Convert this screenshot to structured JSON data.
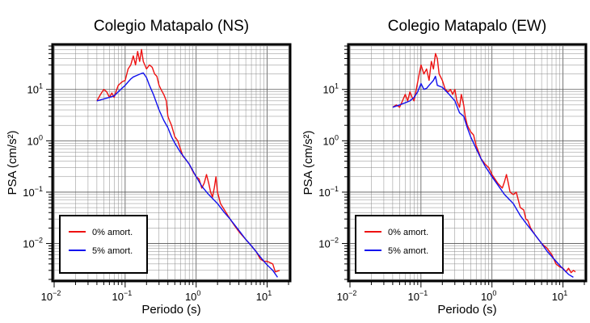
{
  "chart_data": [
    {
      "type": "line",
      "title": "Colegio Matapalo (NS)",
      "xlabel": "Periodo (s)",
      "ylabel": "PSA (cm/s²)",
      "xscale": "log",
      "yscale": "log",
      "xlim": [
        0.01,
        20
      ],
      "ylim": [
        0.002,
        70
      ],
      "grid": true,
      "legend_position": "bottom-left",
      "x_ticks": [
        {
          "value": 0.01,
          "base": "10",
          "exp": "−2"
        },
        {
          "value": 0.1,
          "base": "10",
          "exp": "−1"
        },
        {
          "value": 1,
          "base": "10",
          "exp": "0"
        },
        {
          "value": 10,
          "base": "10",
          "exp": "1"
        }
      ],
      "y_ticks": [
        {
          "value": 0.01,
          "base": "10",
          "exp": "−2"
        },
        {
          "value": 0.1,
          "base": "10",
          "exp": "−1"
        },
        {
          "value": 1,
          "base": "10",
          "exp": "0"
        },
        {
          "value": 10,
          "base": "10",
          "exp": "1"
        }
      ],
      "series": [
        {
          "name": "0% amort.",
          "color": "#ee1111",
          "points": [
            [
              0.04,
              6.0
            ],
            [
              0.045,
              8.0
            ],
            [
              0.05,
              10.0
            ],
            [
              0.055,
              9.0
            ],
            [
              0.06,
              7.0
            ],
            [
              0.065,
              8.5
            ],
            [
              0.07,
              7.0
            ],
            [
              0.075,
              9.5
            ],
            [
              0.08,
              12.0
            ],
            [
              0.09,
              14.0
            ],
            [
              0.1,
              15.0
            ],
            [
              0.11,
              25.0
            ],
            [
              0.12,
              30.0
            ],
            [
              0.13,
              45.0
            ],
            [
              0.14,
              30.0
            ],
            [
              0.15,
              55.0
            ],
            [
              0.16,
              35.0
            ],
            [
              0.17,
              60.0
            ],
            [
              0.18,
              35.0
            ],
            [
              0.2,
              25.0
            ],
            [
              0.22,
              30.0
            ],
            [
              0.24,
              27.0
            ],
            [
              0.26,
              20.0
            ],
            [
              0.28,
              18.0
            ],
            [
              0.3,
              12.0
            ],
            [
              0.32,
              10.0
            ],
            [
              0.35,
              8.0
            ],
            [
              0.38,
              6.0
            ],
            [
              0.4,
              3.0
            ],
            [
              0.42,
              2.5
            ],
            [
              0.45,
              2.0
            ],
            [
              0.5,
              1.2
            ],
            [
              0.55,
              1.0
            ],
            [
              0.6,
              0.7
            ],
            [
              0.65,
              0.5
            ],
            [
              0.7,
              0.45
            ],
            [
              0.8,
              0.35
            ],
            [
              0.9,
              0.25
            ],
            [
              1.0,
              0.2
            ],
            [
              1.1,
              0.18
            ],
            [
              1.2,
              0.12
            ],
            [
              1.3,
              0.15
            ],
            [
              1.4,
              0.22
            ],
            [
              1.5,
              0.15
            ],
            [
              1.6,
              0.1
            ],
            [
              1.7,
              0.08
            ],
            [
              1.8,
              0.12
            ],
            [
              1.9,
              0.2
            ],
            [
              2.0,
              0.1
            ],
            [
              2.2,
              0.06
            ],
            [
              2.5,
              0.045
            ],
            [
              3.0,
              0.03
            ],
            [
              3.5,
              0.022
            ],
            [
              4.0,
              0.017
            ],
            [
              5.0,
              0.012
            ],
            [
              6.0,
              0.009
            ],
            [
              7.0,
              0.007
            ],
            [
              8.0,
              0.005
            ],
            [
              9.0,
              0.0045
            ],
            [
              10.0,
              0.0045
            ],
            [
              12.0,
              0.004
            ],
            [
              13.0,
              0.0028
            ],
            [
              15.0,
              0.003
            ]
          ]
        },
        {
          "name": "5% amort.",
          "color": "#1111ee",
          "points": [
            [
              0.04,
              6.0
            ],
            [
              0.05,
              6.5
            ],
            [
              0.06,
              7.0
            ],
            [
              0.07,
              7.5
            ],
            [
              0.08,
              9.0
            ],
            [
              0.09,
              10.5
            ],
            [
              0.1,
              12.0
            ],
            [
              0.11,
              14.0
            ],
            [
              0.12,
              16.0
            ],
            [
              0.13,
              17.5
            ],
            [
              0.15,
              19.0
            ],
            [
              0.17,
              20.5
            ],
            [
              0.18,
              21.0
            ],
            [
              0.2,
              17.0
            ],
            [
              0.22,
              12.0
            ],
            [
              0.25,
              8.0
            ],
            [
              0.3,
              4.0
            ],
            [
              0.35,
              2.5
            ],
            [
              0.4,
              1.8
            ],
            [
              0.45,
              1.2
            ],
            [
              0.5,
              0.9
            ],
            [
              0.6,
              0.6
            ],
            [
              0.7,
              0.45
            ],
            [
              0.8,
              0.35
            ],
            [
              1.0,
              0.2
            ],
            [
              1.2,
              0.13
            ],
            [
              1.5,
              0.09
            ],
            [
              2.0,
              0.06
            ],
            [
              2.5,
              0.04
            ],
            [
              3.0,
              0.03
            ],
            [
              4.0,
              0.018
            ],
            [
              5.0,
              0.012
            ],
            [
              6.0,
              0.009
            ],
            [
              8.0,
              0.0055
            ],
            [
              10.0,
              0.0038
            ],
            [
              12.0,
              0.003
            ],
            [
              14.0,
              0.0022
            ]
          ]
        }
      ]
    },
    {
      "type": "line",
      "title": "Colegio Matapalo (EW)",
      "xlabel": "Periodo (s)",
      "ylabel": "PSA (cm/s²)",
      "xscale": "log",
      "yscale": "log",
      "xlim": [
        0.01,
        20
      ],
      "ylim": [
        0.002,
        70
      ],
      "grid": true,
      "legend_position": "bottom-left",
      "x_ticks": [
        {
          "value": 0.01,
          "base": "10",
          "exp": "−2"
        },
        {
          "value": 0.1,
          "base": "10",
          "exp": "−1"
        },
        {
          "value": 1,
          "base": "10",
          "exp": "0"
        },
        {
          "value": 10,
          "base": "10",
          "exp": "1"
        }
      ],
      "y_ticks": [
        {
          "value": 0.01,
          "base": "10",
          "exp": "−2"
        },
        {
          "value": 0.1,
          "base": "10",
          "exp": "−1"
        },
        {
          "value": 1,
          "base": "10",
          "exp": "0"
        },
        {
          "value": 10,
          "base": "10",
          "exp": "1"
        }
      ],
      "series": [
        {
          "name": "0% amort.",
          "color": "#ee1111",
          "points": [
            [
              0.04,
              4.5
            ],
            [
              0.045,
              5.0
            ],
            [
              0.05,
              4.5
            ],
            [
              0.055,
              6.0
            ],
            [
              0.06,
              8.0
            ],
            [
              0.065,
              6.0
            ],
            [
              0.07,
              9.0
            ],
            [
              0.075,
              7.0
            ],
            [
              0.08,
              6.0
            ],
            [
              0.09,
              14.0
            ],
            [
              0.1,
              30.0
            ],
            [
              0.11,
              20.0
            ],
            [
              0.12,
              25.0
            ],
            [
              0.13,
              15.0
            ],
            [
              0.14,
              35.0
            ],
            [
              0.15,
              25.0
            ],
            [
              0.16,
              50.0
            ],
            [
              0.17,
              40.0
            ],
            [
              0.18,
              20.0
            ],
            [
              0.2,
              15.0
            ],
            [
              0.22,
              10.0
            ],
            [
              0.24,
              9.0
            ],
            [
              0.26,
              10.0
            ],
            [
              0.28,
              8.0
            ],
            [
              0.3,
              10.0
            ],
            [
              0.32,
              6.0
            ],
            [
              0.35,
              4.5
            ],
            [
              0.37,
              8.0
            ],
            [
              0.4,
              5.0
            ],
            [
              0.42,
              3.0
            ],
            [
              0.45,
              2.0
            ],
            [
              0.5,
              1.5
            ],
            [
              0.55,
              1.3
            ],
            [
              0.6,
              0.8
            ],
            [
              0.65,
              0.6
            ],
            [
              0.7,
              0.45
            ],
            [
              0.8,
              0.35
            ],
            [
              0.9,
              0.3
            ],
            [
              1.0,
              0.22
            ],
            [
              1.2,
              0.15
            ],
            [
              1.4,
              0.12
            ],
            [
              1.5,
              0.16
            ],
            [
              1.6,
              0.22
            ],
            [
              1.7,
              0.15
            ],
            [
              1.8,
              0.1
            ],
            [
              2.0,
              0.09
            ],
            [
              2.2,
              0.1
            ],
            [
              2.5,
              0.05
            ],
            [
              2.8,
              0.045
            ],
            [
              3.0,
              0.03
            ],
            [
              3.2,
              0.028
            ],
            [
              3.5,
              0.02
            ],
            [
              4.0,
              0.015
            ],
            [
              5.0,
              0.01
            ],
            [
              6.0,
              0.008
            ],
            [
              7.0,
              0.006
            ],
            [
              8.0,
              0.004
            ],
            [
              9.0,
              0.0035
            ],
            [
              10.0,
              0.0033
            ],
            [
              11.0,
              0.0028
            ],
            [
              12.0,
              0.0033
            ],
            [
              13.0,
              0.0027
            ],
            [
              14.0,
              0.003
            ],
            [
              15.0,
              0.0028
            ]
          ]
        },
        {
          "name": "5% amort.",
          "color": "#1111ee",
          "points": [
            [
              0.04,
              4.5
            ],
            [
              0.05,
              5.0
            ],
            [
              0.06,
              5.5
            ],
            [
              0.07,
              6.0
            ],
            [
              0.08,
              7.0
            ],
            [
              0.09,
              9.0
            ],
            [
              0.1,
              13.0
            ],
            [
              0.11,
              10.0
            ],
            [
              0.12,
              10.5
            ],
            [
              0.13,
              12.0
            ],
            [
              0.15,
              15.0
            ],
            [
              0.16,
              18.0
            ],
            [
              0.17,
              12.0
            ],
            [
              0.2,
              11.0
            ],
            [
              0.25,
              8.0
            ],
            [
              0.3,
              6.0
            ],
            [
              0.35,
              3.5
            ],
            [
              0.4,
              3.0
            ],
            [
              0.45,
              1.8
            ],
            [
              0.5,
              1.2
            ],
            [
              0.6,
              0.7
            ],
            [
              0.7,
              0.45
            ],
            [
              0.8,
              0.32
            ],
            [
              1.0,
              0.2
            ],
            [
              1.2,
              0.14
            ],
            [
              1.5,
              0.09
            ],
            [
              2.0,
              0.06
            ],
            [
              2.5,
              0.035
            ],
            [
              3.0,
              0.025
            ],
            [
              4.0,
              0.015
            ],
            [
              5.0,
              0.01
            ],
            [
              6.0,
              0.007
            ],
            [
              8.0,
              0.0045
            ],
            [
              10.0,
              0.0032
            ],
            [
              12.0,
              0.0025
            ],
            [
              14.0,
              0.0022
            ]
          ]
        }
      ]
    }
  ]
}
